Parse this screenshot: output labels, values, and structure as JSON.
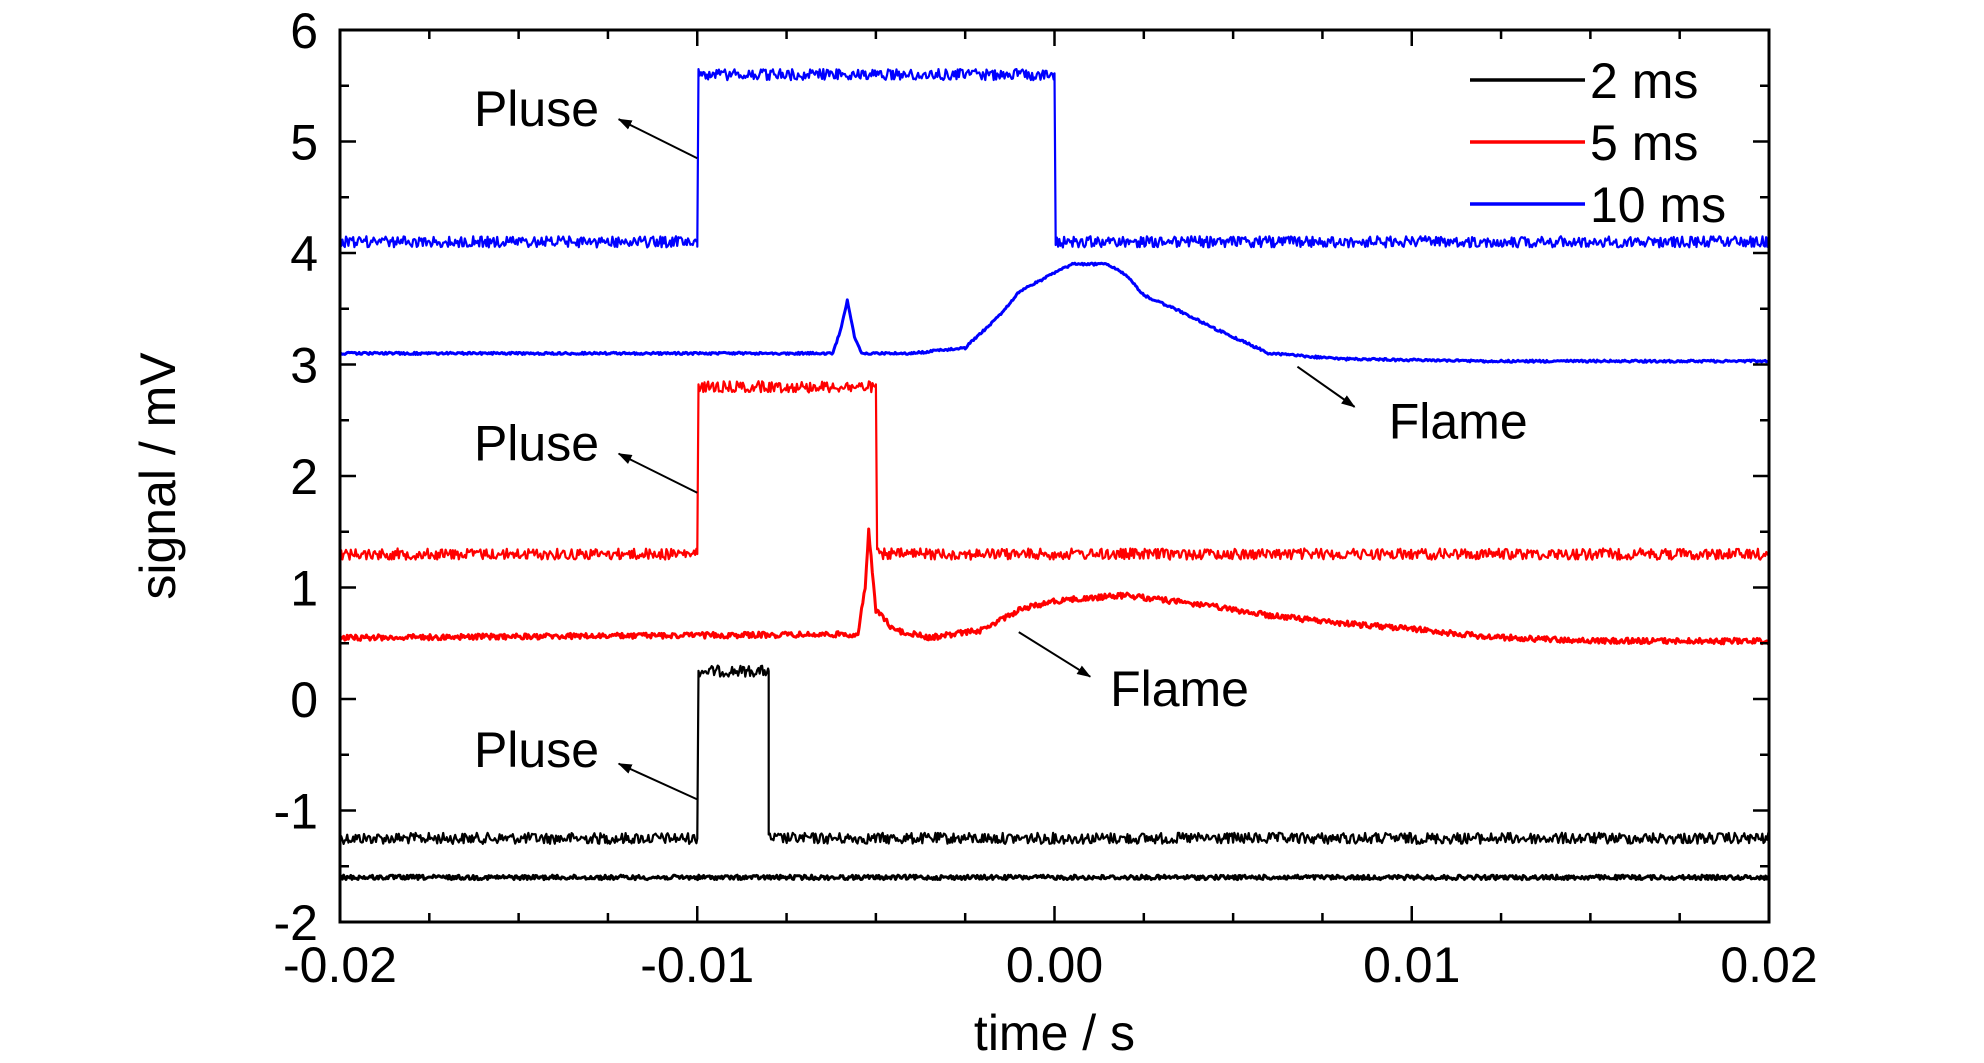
{
  "chart_data": {
    "type": "line",
    "xlabel": "time / s",
    "ylabel": "signal / mV",
    "xlim": [
      -0.02,
      0.02
    ],
    "ylim": [
      -2,
      6
    ],
    "xticks": [
      -0.02,
      -0.01,
      0.0,
      0.01,
      0.02
    ],
    "xtick_labels": [
      "-0.02",
      "-0.01",
      "0.00",
      "0.01",
      "0.02"
    ],
    "yticks": [
      -2,
      -1,
      0,
      1,
      2,
      3,
      4,
      5,
      6
    ],
    "ytick_labels": [
      "-2",
      "-1",
      "0",
      "1",
      "2",
      "3",
      "4",
      "5",
      "6"
    ],
    "grid": false,
    "legend_position": "top-right",
    "legend": [
      {
        "name": "2 ms",
        "color": "#000000"
      },
      {
        "name": "5 ms",
        "color": "#ff0000"
      },
      {
        "name": "10 ms",
        "color": "#0000ff"
      }
    ],
    "series": [
      {
        "name": "2 ms",
        "color": "#000000",
        "trace": "pulse",
        "x": [
          -0.02,
          -0.01,
          -0.01,
          -0.008,
          -0.008,
          0.02
        ],
        "y": [
          -1.25,
          -1.25,
          0.25,
          0.25,
          -1.25,
          -1.25
        ],
        "noise": 0.05
      },
      {
        "name": "2 ms",
        "color": "#000000",
        "trace": "flame",
        "x": [
          -0.02,
          0.02
        ],
        "y": [
          -1.6,
          -1.6
        ],
        "noise": 0.02
      },
      {
        "name": "5 ms",
        "color": "#ff0000",
        "trace": "pulse",
        "x": [
          -0.02,
          -0.01,
          -0.01,
          -0.005,
          -0.005,
          0.02
        ],
        "y": [
          1.3,
          1.3,
          2.8,
          2.8,
          1.3,
          1.3
        ],
        "noise": 0.05
      },
      {
        "name": "5 ms",
        "color": "#ff0000",
        "trace": "flame",
        "x": [
          -0.02,
          -0.0055,
          -0.0053,
          -0.0052,
          -0.005,
          -0.0045,
          -0.0035,
          -0.002,
          -0.001,
          0.0,
          0.002,
          0.004,
          0.006,
          0.008,
          0.01,
          0.012,
          0.015,
          0.02
        ],
        "y": [
          0.55,
          0.58,
          1.0,
          1.5,
          0.8,
          0.62,
          0.55,
          0.62,
          0.8,
          0.88,
          0.93,
          0.85,
          0.75,
          0.68,
          0.63,
          0.56,
          0.52,
          0.52
        ],
        "noise": 0.025
      },
      {
        "name": "10 ms",
        "color": "#0000ff",
        "trace": "pulse",
        "x": [
          -0.02,
          -0.01,
          -0.01,
          0.0,
          0.0,
          0.02
        ],
        "y": [
          4.1,
          4.1,
          5.6,
          5.6,
          4.1,
          4.1
        ],
        "noise": 0.05
      },
      {
        "name": "10 ms",
        "color": "#0000ff",
        "trace": "flame",
        "x": [
          -0.02,
          -0.0062,
          -0.006,
          -0.0058,
          -0.0056,
          -0.0054,
          -0.004,
          -0.0025,
          -0.0015,
          -0.001,
          0.0,
          0.0005,
          0.0015,
          0.002,
          0.0025,
          0.0035,
          0.0045,
          0.006,
          0.008,
          0.012,
          0.02
        ],
        "y": [
          3.1,
          3.1,
          3.3,
          3.58,
          3.25,
          3.1,
          3.1,
          3.15,
          3.45,
          3.65,
          3.82,
          3.9,
          3.9,
          3.8,
          3.62,
          3.48,
          3.32,
          3.1,
          3.05,
          3.03,
          3.03
        ],
        "noise": 0.01
      }
    ],
    "annotations": [
      {
        "text": "Pluse",
        "x": -0.0145,
        "y": 5.3,
        "arrow_from": [
          -0.01,
          4.85
        ],
        "arrow_to": [
          -0.0122,
          5.2
        ]
      },
      {
        "text": "Flame",
        "x": 0.0113,
        "y": 2.5,
        "arrow_from": [
          0.0068,
          2.98
        ],
        "arrow_to": [
          0.0084,
          2.62
        ]
      },
      {
        "text": "Pluse",
        "x": -0.0145,
        "y": 2.3,
        "arrow_from": [
          -0.01,
          1.85
        ],
        "arrow_to": [
          -0.0122,
          2.2
        ]
      },
      {
        "text": "Flame",
        "x": 0.0035,
        "y": 0.1,
        "arrow_from": [
          -0.001,
          0.6
        ],
        "arrow_to": [
          0.001,
          0.2
        ]
      },
      {
        "text": "Pluse",
        "x": -0.0145,
        "y": -0.45,
        "arrow_from": [
          -0.01,
          -0.9
        ],
        "arrow_to": [
          -0.0122,
          -0.58
        ]
      }
    ]
  }
}
